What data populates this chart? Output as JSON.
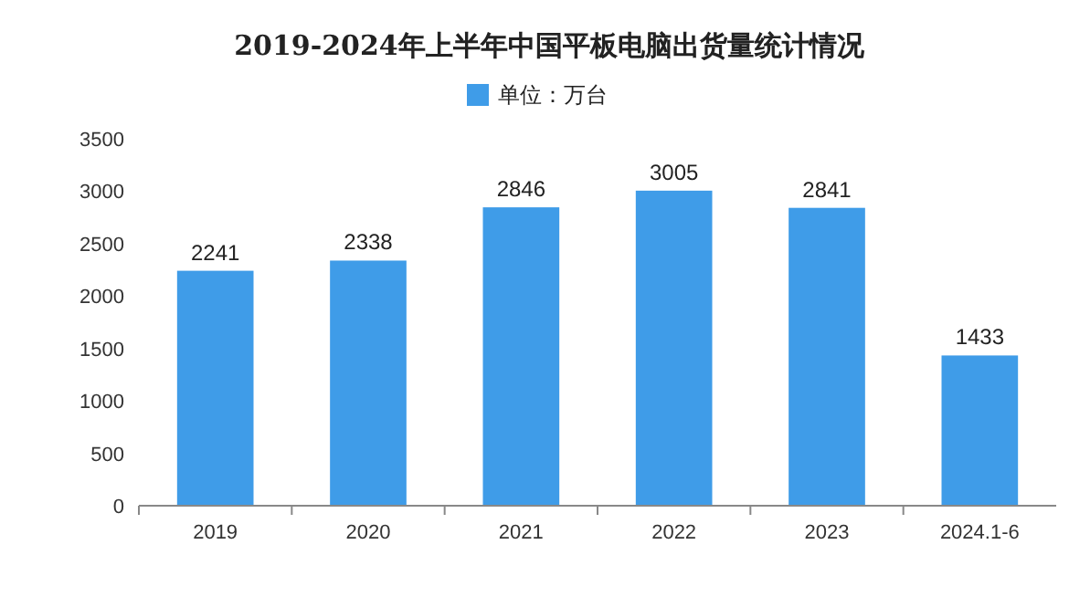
{
  "chart_data": {
    "type": "bar",
    "title": "2019-2024年上半年中国平板电脑出货量统计情况",
    "categories": [
      "2019",
      "2020",
      "2021",
      "2022",
      "2023",
      "2024.1-6"
    ],
    "series": [
      {
        "name": "单位：万台",
        "color": "#3f9ce8",
        "values": [
          2241,
          2338,
          2846,
          3005,
          2841,
          1433
        ]
      }
    ],
    "ylim": [
      0,
      3500
    ],
    "yticks": [
      0,
      500,
      1000,
      1500,
      2000,
      2500,
      3000,
      3500
    ],
    "data_labels": true,
    "legend": "top",
    "grid": false
  }
}
